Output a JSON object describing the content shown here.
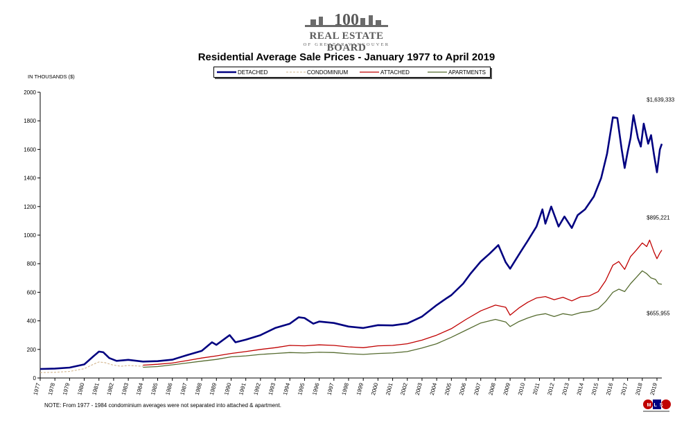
{
  "header": {
    "logo_name": "REAL ESTATE BOARD",
    "logo_sub": "OF GREATER VANCOUVER",
    "logo_number": "100"
  },
  "chart_data": {
    "type": "line",
    "title": "Residential Average Sale Prices  -  January 1977 to April 2019",
    "ylabel": "IN THOUSANDS ($)",
    "xlabel": "",
    "ylim": [
      0,
      2000
    ],
    "yticks": [
      0,
      200,
      400,
      600,
      800,
      1000,
      1200,
      1400,
      1600,
      1800,
      2000
    ],
    "xlim": [
      1977,
      2019.33
    ],
    "xtick_labels": [
      "1977",
      "1978",
      "1979",
      "1980",
      "1981",
      "1982",
      "1983",
      "1984",
      "1985",
      "1986",
      "1987",
      "1988",
      "1989",
      "1990",
      "1991",
      "1992",
      "1993",
      "1994",
      "1995",
      "1996",
      "1997",
      "1998",
      "1999",
      "2000",
      "2001",
      "2002",
      "2003",
      "2004",
      "2005",
      "2006",
      "2007",
      "2008",
      "2009",
      "2010",
      "2011",
      "2012",
      "2013",
      "2014",
      "2015",
      "2016",
      "2017",
      "2018",
      "2019"
    ],
    "grid": false,
    "legend_placement": "top-center",
    "series": [
      {
        "name": "DETACHED",
        "color": "#000080",
        "style": "solid-thick",
        "points": [
          [
            1977,
            63
          ],
          [
            1978,
            66
          ],
          [
            1979,
            73
          ],
          [
            1980,
            95
          ],
          [
            1980.6,
            150
          ],
          [
            1981.0,
            185
          ],
          [
            1981.3,
            180
          ],
          [
            1981.7,
            140
          ],
          [
            1982.2,
            120
          ],
          [
            1983,
            127
          ],
          [
            1984,
            115
          ],
          [
            1985,
            118
          ],
          [
            1986,
            128
          ],
          [
            1987,
            160
          ],
          [
            1988,
            190
          ],
          [
            1988.7,
            250
          ],
          [
            1989,
            232
          ],
          [
            1989.9,
            300
          ],
          [
            1990.3,
            250
          ],
          [
            1991,
            268
          ],
          [
            1992,
            300
          ],
          [
            1993,
            350
          ],
          [
            1994,
            380
          ],
          [
            1994.6,
            425
          ],
          [
            1995,
            420
          ],
          [
            1995.6,
            380
          ],
          [
            1996,
            395
          ],
          [
            1997,
            385
          ],
          [
            1998,
            360
          ],
          [
            1999,
            350
          ],
          [
            2000,
            370
          ],
          [
            2001,
            368
          ],
          [
            2002,
            382
          ],
          [
            2003,
            430
          ],
          [
            2004,
            510
          ],
          [
            2004.7,
            560
          ],
          [
            2005,
            580
          ],
          [
            2005.8,
            660
          ],
          [
            2006.3,
            730
          ],
          [
            2007,
            815
          ],
          [
            2007.6,
            870
          ],
          [
            2008.2,
            930
          ],
          [
            2008.7,
            810
          ],
          [
            2009,
            765
          ],
          [
            2009.7,
            880
          ],
          [
            2010.2,
            960
          ],
          [
            2010.8,
            1060
          ],
          [
            2011.2,
            1180
          ],
          [
            2011.4,
            1080
          ],
          [
            2011.8,
            1200
          ],
          [
            2012.3,
            1060
          ],
          [
            2012.7,
            1130
          ],
          [
            2013.2,
            1050
          ],
          [
            2013.6,
            1140
          ],
          [
            2014.1,
            1180
          ],
          [
            2014.7,
            1270
          ],
          [
            2015.2,
            1400
          ],
          [
            2015.6,
            1570
          ],
          [
            2016.0,
            1825
          ],
          [
            2016.3,
            1820
          ],
          [
            2016.6,
            1600
          ],
          [
            2016.8,
            1470
          ],
          [
            2017.0,
            1580
          ],
          [
            2017.2,
            1680
          ],
          [
            2017.4,
            1840
          ],
          [
            2017.7,
            1680
          ],
          [
            2017.9,
            1620
          ],
          [
            2018.1,
            1780
          ],
          [
            2018.4,
            1640
          ],
          [
            2018.6,
            1700
          ],
          [
            2018.8,
            1560
          ],
          [
            2019.0,
            1440
          ],
          [
            2019.2,
            1600
          ],
          [
            2019.33,
            1639
          ]
        ]
      },
      {
        "name": "CONDOMINIUM",
        "color": "#d2b48c",
        "style": "dashed",
        "points": [
          [
            1977,
            38
          ],
          [
            1978,
            40
          ],
          [
            1979,
            46
          ],
          [
            1980,
            65
          ],
          [
            1980.6,
            95
          ],
          [
            1981.0,
            112
          ],
          [
            1981.4,
            108
          ],
          [
            1981.9,
            92
          ],
          [
            1982.5,
            82
          ],
          [
            1983,
            88
          ],
          [
            1984,
            82
          ]
        ]
      },
      {
        "name": "ATTACHED",
        "color": "#c00000",
        "style": "solid",
        "points": [
          [
            1984,
            90
          ],
          [
            1985,
            96
          ],
          [
            1986,
            105
          ],
          [
            1987,
            122
          ],
          [
            1988,
            140
          ],
          [
            1989,
            155
          ],
          [
            1990,
            172
          ],
          [
            1991,
            185
          ],
          [
            1992,
            200
          ],
          [
            1993,
            212
          ],
          [
            1994,
            228
          ],
          [
            1995,
            225
          ],
          [
            1996,
            232
          ],
          [
            1997,
            228
          ],
          [
            1998,
            218
          ],
          [
            1999,
            212
          ],
          [
            2000,
            225
          ],
          [
            2001,
            228
          ],
          [
            2002,
            240
          ],
          [
            2003,
            265
          ],
          [
            2004,
            300
          ],
          [
            2005,
            345
          ],
          [
            2006,
            410
          ],
          [
            2007,
            470
          ],
          [
            2008,
            510
          ],
          [
            2008.7,
            495
          ],
          [
            2009,
            440
          ],
          [
            2009.6,
            490
          ],
          [
            2010.2,
            530
          ],
          [
            2010.8,
            560
          ],
          [
            2011.4,
            570
          ],
          [
            2012,
            548
          ],
          [
            2012.6,
            565
          ],
          [
            2013.2,
            540
          ],
          [
            2013.8,
            568
          ],
          [
            2014.4,
            575
          ],
          [
            2015,
            605
          ],
          [
            2015.5,
            680
          ],
          [
            2016,
            790
          ],
          [
            2016.4,
            815
          ],
          [
            2016.8,
            760
          ],
          [
            2017.2,
            850
          ],
          [
            2017.6,
            895
          ],
          [
            2018.0,
            945
          ],
          [
            2018.3,
            920
          ],
          [
            2018.5,
            965
          ],
          [
            2018.8,
            880
          ],
          [
            2019.0,
            835
          ],
          [
            2019.2,
            875
          ],
          [
            2019.33,
            895
          ]
        ]
      },
      {
        "name": "APARTMENTS",
        "color": "#556b2f",
        "style": "solid",
        "points": [
          [
            1984,
            75
          ],
          [
            1985,
            80
          ],
          [
            1986,
            92
          ],
          [
            1987,
            105
          ],
          [
            1988,
            118
          ],
          [
            1989,
            130
          ],
          [
            1990,
            148
          ],
          [
            1991,
            155
          ],
          [
            1992,
            165
          ],
          [
            1993,
            172
          ],
          [
            1994,
            178
          ],
          [
            1995,
            175
          ],
          [
            1996,
            180
          ],
          [
            1997,
            178
          ],
          [
            1998,
            170
          ],
          [
            1999,
            165
          ],
          [
            2000,
            172
          ],
          [
            2001,
            175
          ],
          [
            2002,
            185
          ],
          [
            2003,
            210
          ],
          [
            2004,
            240
          ],
          [
            2005,
            285
          ],
          [
            2006,
            335
          ],
          [
            2007,
            385
          ],
          [
            2008,
            410
          ],
          [
            2008.7,
            392
          ],
          [
            2009,
            360
          ],
          [
            2009.6,
            395
          ],
          [
            2010.2,
            420
          ],
          [
            2010.8,
            440
          ],
          [
            2011.4,
            450
          ],
          [
            2012,
            430
          ],
          [
            2012.6,
            450
          ],
          [
            2013.2,
            440
          ],
          [
            2013.8,
            458
          ],
          [
            2014.4,
            465
          ],
          [
            2015,
            485
          ],
          [
            2015.5,
            535
          ],
          [
            2016,
            600
          ],
          [
            2016.4,
            622
          ],
          [
            2016.8,
            605
          ],
          [
            2017.2,
            660
          ],
          [
            2017.6,
            705
          ],
          [
            2018.0,
            750
          ],
          [
            2018.3,
            730
          ],
          [
            2018.6,
            700
          ],
          [
            2018.9,
            690
          ],
          [
            2019.1,
            660
          ],
          [
            2019.33,
            656
          ]
        ]
      }
    ],
    "annotations": [
      {
        "text": "$1,639,333",
        "x": 2018.3,
        "y": 1935
      },
      {
        "text": "$895,221",
        "x": 2018.3,
        "y": 1110
      },
      {
        "text": "$655,955",
        "x": 2018.3,
        "y": 440
      }
    ],
    "footnote": "NOTE:  From 1977 - 1984 condominium averages were not separated into attached & apartment.",
    "mls_mark": "MLS"
  }
}
